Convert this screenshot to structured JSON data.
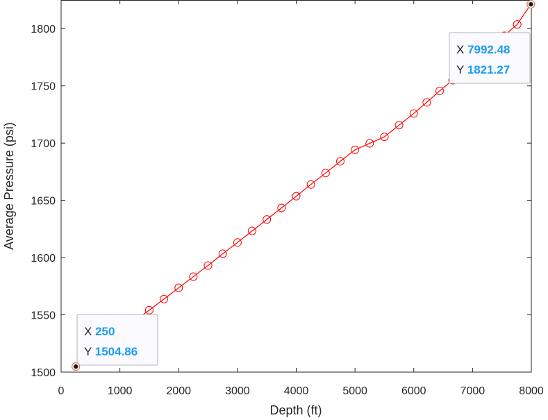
{
  "chart_data": {
    "type": "line",
    "xlabel": "Depth (ft)",
    "ylabel": "Average Pressure (psi)",
    "xlim": [
      0,
      8000
    ],
    "ylim": [
      1500,
      1825
    ],
    "xticks": [
      0,
      1000,
      2000,
      3000,
      4000,
      5000,
      6000,
      7000,
      8000
    ],
    "yticks": [
      1500,
      1550,
      1600,
      1650,
      1700,
      1750,
      1800
    ],
    "grid": false,
    "series": [
      {
        "marker": "circle-open",
        "x": [
          250,
          500,
          750,
          1000,
          1250,
          1500,
          1750,
          2000,
          2250,
          2500,
          2750,
          3000,
          3250,
          3500,
          3750,
          4000,
          4250,
          4500,
          4750,
          5000,
          5250,
          5500,
          5750,
          6000,
          6220,
          6440,
          6660,
          6880,
          7100,
          7320,
          7540,
          7760,
          7992.48
        ],
        "y": [
          1504.86,
          1514.9,
          1524.9,
          1534.9,
          1544.9,
          1554.1,
          1563.8,
          1573.6,
          1583.4,
          1593.1,
          1603.4,
          1613.2,
          1623.3,
          1633.3,
          1643.4,
          1653.6,
          1663.9,
          1673.9,
          1684.1,
          1694.1,
          1699.8,
          1705.5,
          1715.7,
          1725.9,
          1735.6,
          1745.6,
          1755.0,
          1764.5,
          1774.0,
          1783.9,
          1793.8,
          1803.7,
          1821.27
        ]
      }
    ],
    "datatips": [
      {
        "x_key": "X",
        "x_value": "250",
        "y_key": "Y",
        "y_value": "1504.86",
        "x": 250,
        "y": 1504.86
      },
      {
        "x_key": "X",
        "x_value": "7992.48",
        "y_key": "Y",
        "y_value": "1821.27",
        "x": 7992.48,
        "y": 1821.27
      }
    ],
    "colors": {
      "line": "#ff0000",
      "datatip_value": "#1a9cf0",
      "axis": "#262626",
      "datatip_bg": "#fafaff",
      "datatip_border": "#b4b4b4"
    }
  }
}
